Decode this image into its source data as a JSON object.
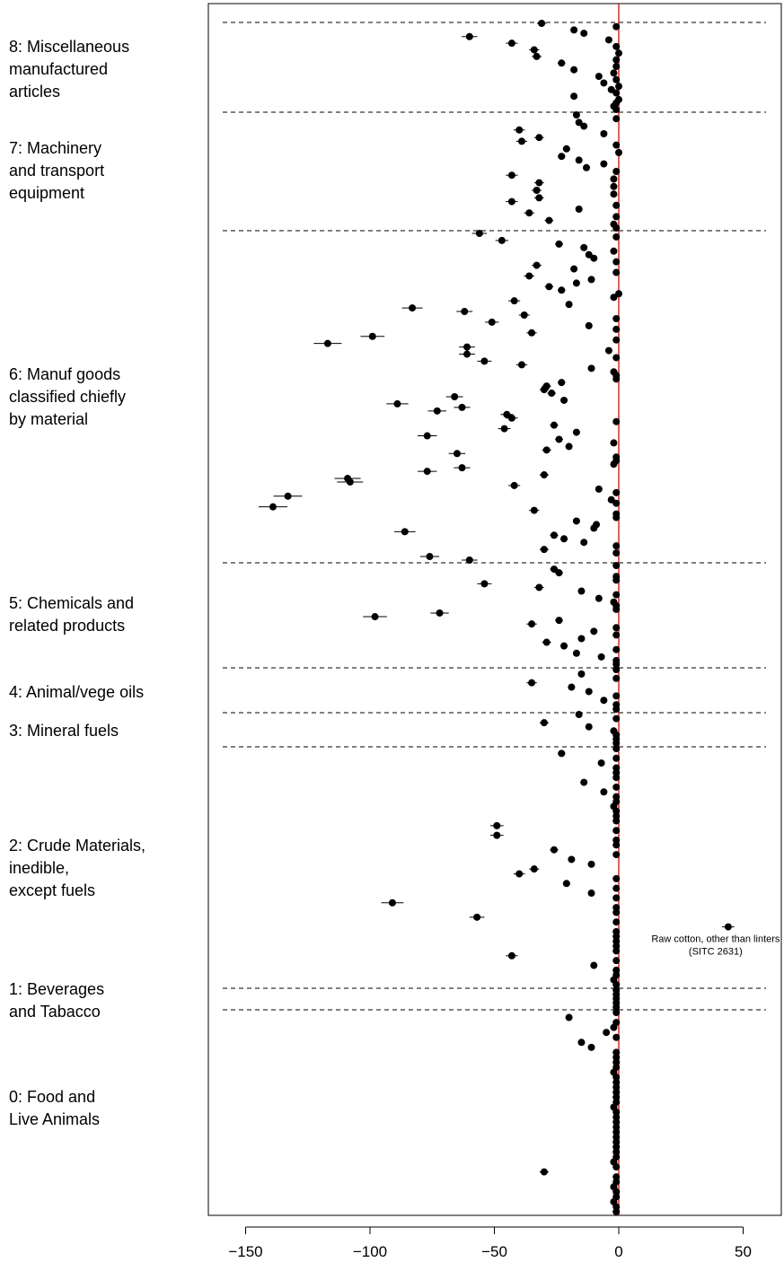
{
  "chart_data": {
    "type": "scatter",
    "title": "",
    "xlabel": "",
    "ylabel": "",
    "xlim": [
      -165,
      62
    ],
    "xticks": [
      -150,
      -100,
      -50,
      0,
      50
    ],
    "xtick_labels": [
      "−150",
      "−100",
      "−50",
      "0",
      "50"
    ],
    "reference_line": {
      "x": 0,
      "color": "#e00000"
    },
    "grid": false,
    "groups": [
      {
        "id": 8,
        "label": "8: Miscellaneous\nmanufactured\narticles",
        "values": [
          -31,
          -1,
          -18,
          -14,
          -60,
          -4,
          -43,
          -1,
          -34,
          0,
          -33,
          -1,
          -23,
          -1,
          -18,
          -2,
          -8,
          -1,
          -6,
          0,
          -3,
          -1,
          -18,
          0,
          -1,
          -2,
          -1
        ]
      },
      {
        "id": 7,
        "label": "7: Machinery\nand transport\nequipment",
        "values": [
          -17,
          -1,
          -16,
          -14,
          -40,
          -6,
          -32,
          -39,
          -1,
          -21,
          0,
          -23,
          -16,
          -6,
          -13,
          -1,
          -43,
          -2,
          -32,
          -2,
          -33,
          -2,
          -32,
          -43,
          -1,
          -16,
          -36,
          -1,
          -28,
          -2,
          -1
        ]
      },
      {
        "id": 6,
        "label": "6: Manuf goods\nclassified chiefly\nby material",
        "values": [
          -56,
          -1,
          -47,
          -24,
          -14,
          -2,
          -12,
          -10,
          -1,
          -33,
          -18,
          -1,
          -36,
          -11,
          -17,
          -28,
          -23,
          0,
          -2,
          -42,
          -20,
          -83,
          -62,
          -38,
          -1,
          -51,
          -12,
          -1,
          -35,
          -99,
          -1,
          -117,
          -61,
          -4,
          -61,
          -1,
          -54,
          -39,
          -11,
          -2,
          -1,
          -1,
          -23,
          -29,
          -30,
          -27,
          -66,
          -22,
          -89,
          -63,
          -73,
          -45,
          -43,
          -1,
          -26,
          -46,
          -17,
          -77,
          -24,
          -2,
          -20,
          -29,
          -65,
          -1,
          -1,
          -2,
          -63,
          -77,
          -30,
          -109,
          -108,
          -42,
          -8,
          -1,
          -133,
          -3,
          -1,
          -139,
          -34,
          -1,
          -1,
          -17,
          -9,
          -10,
          -86,
          -26,
          -22,
          -14,
          -1,
          -30,
          -1,
          -76,
          -60
        ]
      },
      {
        "id": 5,
        "label": "5: Chemicals and\nrelated products",
        "values": [
          -1,
          -26,
          -24,
          -1,
          -1,
          -54,
          -32,
          -15,
          -1,
          -8,
          -2,
          -1,
          -1,
          -72,
          -98,
          -24,
          -35,
          -1,
          -10,
          -1,
          -15,
          -29,
          -22,
          -1,
          -17,
          -7,
          -1,
          -1
        ]
      },
      {
        "id": 4,
        "label": "4: Animal/vege oils",
        "values": [
          -1,
          -15,
          -1,
          -35,
          -19,
          -12,
          -1,
          -6,
          -1,
          -1
        ]
      },
      {
        "id": 3,
        "label": "3: Mineral fuels",
        "values": [
          -16,
          -1,
          -30,
          -12,
          -2,
          -1,
          -1,
          -1
        ]
      },
      {
        "id": 2,
        "label": "2: Crude Materials,\ninedible,\nexcept fuels",
        "values": [
          -1,
          -23,
          -1,
          -7,
          -1,
          -1,
          -1,
          -14,
          -1,
          -6,
          -1,
          -1,
          -2,
          -1,
          -1,
          -1,
          -49,
          -1,
          -49,
          -1,
          -1,
          -26,
          -1,
          -19,
          -11,
          -34,
          -40,
          -1,
          -21,
          -1,
          -11,
          -1,
          -91,
          -1,
          -1,
          -57,
          -1,
          44,
          -1,
          -1,
          -1,
          -1,
          -1,
          -43,
          -1,
          -10,
          -1,
          -1,
          -2,
          -1
        ]
      },
      {
        "id": 1,
        "label": "1: Beverages\nand Tabacco",
        "values": [
          -1,
          -1,
          -1,
          -1,
          -1
        ]
      },
      {
        "id": 0,
        "label": "0: Food and\nLive Animals",
        "values": [
          -1,
          -20,
          -1,
          -2,
          -5,
          -1,
          -15,
          -11,
          -1,
          -1,
          -1,
          -1,
          -2,
          -1,
          -1,
          -1,
          -1,
          -1,
          -1,
          -2,
          -1,
          -1,
          -1,
          -1,
          -1,
          -1,
          -1,
          -1,
          -1,
          -1,
          -2,
          -1,
          -30,
          -1,
          -1,
          -2,
          -1,
          -1,
          -2,
          -1,
          -1
        ]
      }
    ],
    "annotations": [
      {
        "text": "Raw cotton, other than linters",
        "group": 2,
        "value": 44
      },
      {
        "text": "(SITC 2631)",
        "group": 2,
        "value": 44
      }
    ]
  }
}
